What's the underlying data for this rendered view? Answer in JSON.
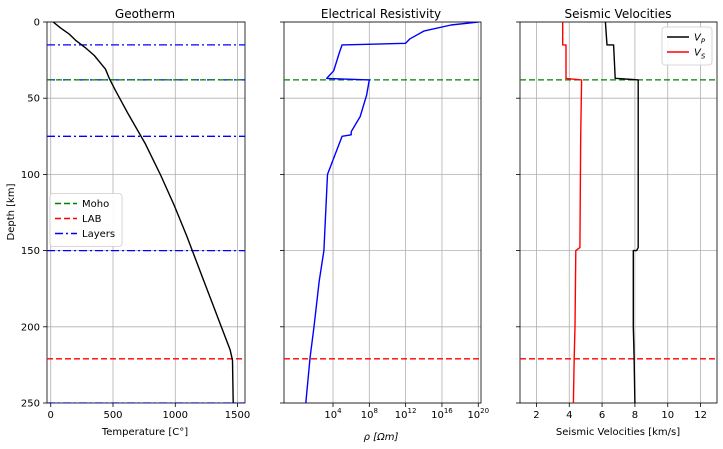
{
  "chart_data": [
    {
      "type": "line",
      "title": "Geotherm",
      "xlabel": "Temperature [C°]",
      "ylabel": "Depth [km]",
      "xlim": [
        -30,
        1560
      ],
      "ylim": [
        250,
        0
      ],
      "x_ticks": [
        0,
        500,
        1000,
        1500
      ],
      "y_ticks": [
        0,
        50,
        100,
        150,
        200,
        250
      ],
      "grid": true,
      "legend": {
        "position": "center-left",
        "entries": [
          "Moho",
          "LAB",
          "Layers"
        ]
      },
      "series": [
        {
          "name": "",
          "color": "#000000",
          "style": "solid",
          "x": [
            20,
            80,
            150,
            200,
            280,
            350,
            400,
            440,
            470,
            520,
            620,
            760,
            880,
            990,
            1090,
            1160,
            1230,
            1300,
            1370,
            1440,
            1460,
            1465
          ],
          "y": [
            0,
            4,
            8,
            12,
            17,
            22,
            27,
            31,
            37,
            45,
            60,
            80,
            100,
            120,
            140,
            155,
            170,
            185,
            200,
            215,
            222,
            250
          ]
        }
      ],
      "hlines": [
        {
          "name": "Moho",
          "y": 38,
          "color": "#008000",
          "style": "dashed"
        },
        {
          "name": "LAB",
          "y": 221,
          "color": "#ff0000",
          "style": "dashed"
        },
        {
          "name": "Layers",
          "y": [
            15,
            38,
            75,
            150,
            250
          ],
          "color": "#0000ff",
          "style": "dashdot"
        }
      ]
    },
    {
      "type": "line",
      "title": "Electrical Resistivity",
      "xlabel": "ρ [Ωm]",
      "ylabel": "",
      "xscale": "log",
      "xlim": [
        0.04,
        2e+20
      ],
      "ylim": [
        250,
        0
      ],
      "x_ticks": [
        10000,
        100000000,
        1000000000000.0,
        1e+16,
        1e+20
      ],
      "x_tick_labels": [
        {
          "base": "10",
          "exp": "4"
        },
        {
          "base": "10",
          "exp": "8"
        },
        {
          "base": "10",
          "exp": "12"
        },
        {
          "base": "10",
          "exp": "16"
        },
        {
          "base": "10",
          "exp": "20"
        }
      ],
      "grid": true,
      "series": [
        {
          "name": "",
          "color": "#0000ff",
          "style": "solid",
          "x": [
            1e+20,
            1e+17,
            100000000000000.0,
            3000000000000.0,
            1000000000000.0,
            100000.0,
            50000.0,
            12000.0,
            2000,
            100000000.0,
            50000000.0,
            10000000.0,
            1000000.0,
            1000000.0,
            100000.0,
            2500,
            1000,
            300,
            80,
            30,
            10
          ],
          "y": [
            0,
            2,
            6,
            11,
            14,
            15,
            20,
            32,
            37,
            38,
            48,
            62,
            72,
            74,
            75,
            100,
            150,
            170,
            200,
            220,
            250
          ]
        }
      ],
      "hlines": [
        {
          "name": "Moho",
          "y": 38,
          "color": "#008000",
          "style": "dashed"
        },
        {
          "name": "LAB",
          "y": 221,
          "color": "#ff0000",
          "style": "dashed"
        }
      ]
    },
    {
      "type": "line",
      "title": "Seismic Velocities",
      "xlabel": "Seismic Velocities [km/s]",
      "ylabel": "",
      "xlim": [
        1,
        13
      ],
      "ylim": [
        250,
        0
      ],
      "x_ticks": [
        2,
        4,
        6,
        8,
        10,
        12
      ],
      "grid": true,
      "legend": {
        "position": "top-right",
        "entries": [
          "V_P",
          "V_S"
        ]
      },
      "series": [
        {
          "name": "V_P",
          "color": "#000000",
          "style": "solid",
          "x": [
            6.2,
            6.3,
            6.3,
            6.7,
            6.8,
            6.9,
            8.2,
            8.2,
            8.2,
            8.1,
            7.9,
            7.9,
            7.95,
            8.0
          ],
          "y": [
            0,
            15,
            15,
            15,
            37,
            37,
            38,
            75,
            148,
            150,
            150,
            200,
            220,
            250
          ]
        },
        {
          "name": "V_S",
          "color": "#ff0000",
          "style": "solid",
          "x": [
            3.6,
            3.6,
            3.7,
            3.8,
            3.8,
            4.75,
            4.7,
            4.65,
            4.4,
            4.35,
            4.3,
            4.25
          ],
          "y": [
            0,
            15,
            15,
            15,
            37,
            38,
            75,
            148,
            150,
            200,
            220,
            250
          ]
        }
      ],
      "hlines": [
        {
          "name": "Moho",
          "y": 38,
          "color": "#008000",
          "style": "dashed"
        },
        {
          "name": "LAB",
          "y": 221,
          "color": "#ff0000",
          "style": "dashed"
        }
      ]
    }
  ]
}
